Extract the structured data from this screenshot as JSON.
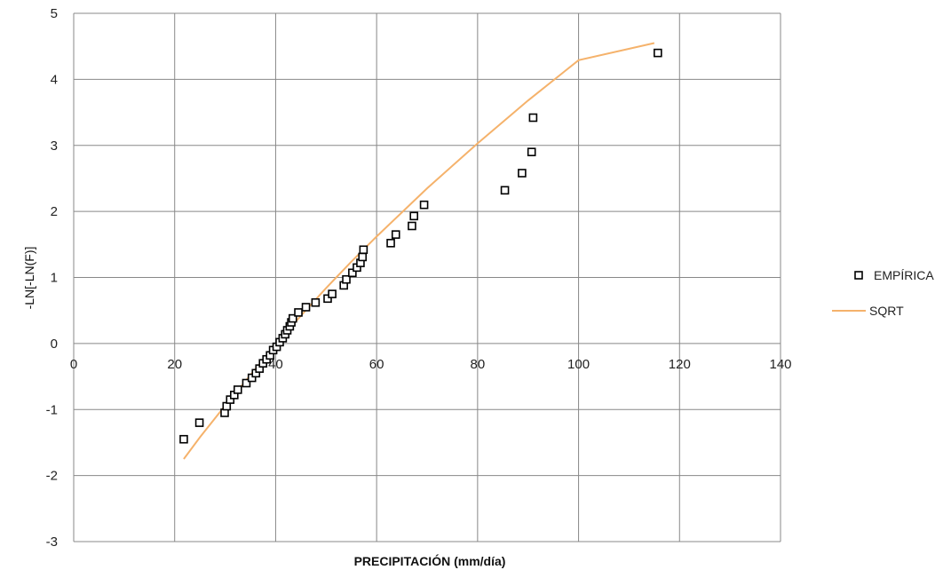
{
  "chart_data": {
    "type": "scatter",
    "title": "",
    "xlabel": "PRECIPITACIÓN (mm/día)",
    "ylabel": "-LN[-LN(F)]",
    "xlim": [
      0,
      140
    ],
    "ylim": [
      -3,
      5
    ],
    "xticks": [
      0,
      20,
      40,
      60,
      80,
      100,
      120,
      140
    ],
    "yticks": [
      -3,
      -2,
      -1,
      0,
      1,
      2,
      3,
      4,
      5
    ],
    "grid": true,
    "legend_position": "right",
    "series": [
      {
        "name": "EMPÍRICA",
        "kind": "scatter",
        "marker": "square-open",
        "color": "#000000",
        "points": [
          [
            21.8,
            -1.45
          ],
          [
            24.9,
            -1.2
          ],
          [
            29.9,
            -1.05
          ],
          [
            30.3,
            -0.95
          ],
          [
            31.0,
            -0.85
          ],
          [
            31.8,
            -0.78
          ],
          [
            32.5,
            -0.7
          ],
          [
            34.2,
            -0.6
          ],
          [
            35.3,
            -0.52
          ],
          [
            36.1,
            -0.45
          ],
          [
            36.8,
            -0.38
          ],
          [
            37.5,
            -0.3
          ],
          [
            38.2,
            -0.24
          ],
          [
            38.9,
            -0.18
          ],
          [
            39.5,
            -0.1
          ],
          [
            40.2,
            -0.05
          ],
          [
            40.8,
            0.02
          ],
          [
            41.4,
            0.08
          ],
          [
            41.9,
            0.14
          ],
          [
            42.3,
            0.2
          ],
          [
            42.8,
            0.26
          ],
          [
            43.1,
            0.32
          ],
          [
            43.4,
            0.38
          ],
          [
            44.5,
            0.47
          ],
          [
            46.0,
            0.55
          ],
          [
            47.9,
            0.62
          ],
          [
            50.3,
            0.68
          ],
          [
            51.2,
            0.75
          ],
          [
            53.5,
            0.88
          ],
          [
            54.0,
            0.97
          ],
          [
            55.2,
            1.07
          ],
          [
            56.1,
            1.15
          ],
          [
            56.8,
            1.22
          ],
          [
            57.2,
            1.31
          ],
          [
            57.4,
            1.42
          ],
          [
            62.8,
            1.52
          ],
          [
            63.8,
            1.65
          ],
          [
            67.0,
            1.78
          ],
          [
            67.4,
            1.93
          ],
          [
            69.4,
            2.1
          ],
          [
            85.4,
            2.32
          ],
          [
            88.8,
            2.58
          ],
          [
            90.7,
            2.9
          ],
          [
            91.0,
            3.42
          ],
          [
            115.7,
            4.4
          ]
        ]
      },
      {
        "name": "SQRT",
        "kind": "line",
        "color": "#F5B26B",
        "points": [
          [
            21.8,
            -1.75
          ],
          [
            25.0,
            -1.42
          ],
          [
            30.0,
            -0.94
          ],
          [
            35.0,
            -0.48
          ],
          [
            40.0,
            -0.02
          ],
          [
            45.0,
            0.42
          ],
          [
            50.0,
            0.84
          ],
          [
            55.0,
            1.24
          ],
          [
            60.0,
            1.62
          ],
          [
            70.0,
            2.35
          ],
          [
            80.0,
            3.03
          ],
          [
            90.0,
            3.68
          ],
          [
            100.0,
            4.29
          ],
          [
            115.0,
            4.55
          ]
        ]
      }
    ]
  }
}
